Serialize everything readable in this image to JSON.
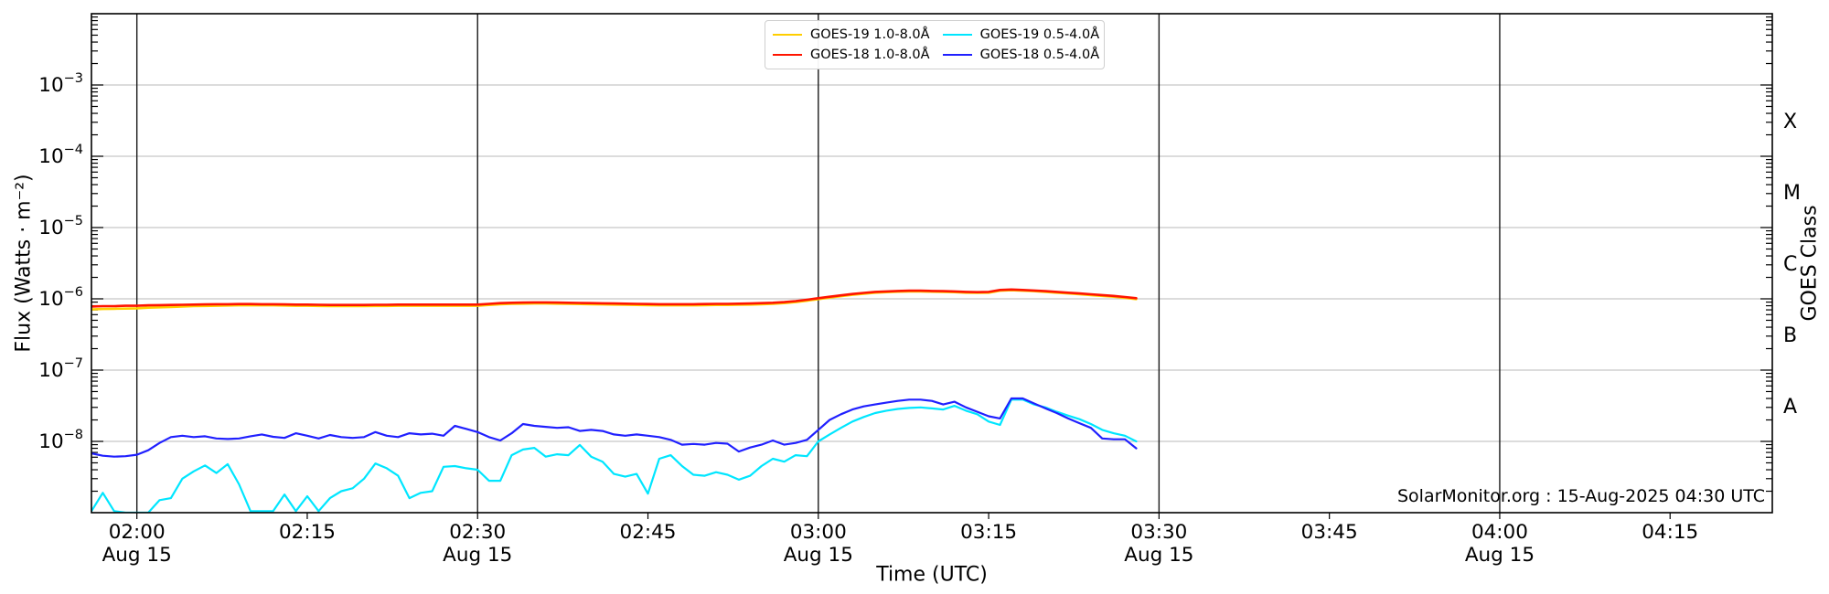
{
  "figure": {
    "xlabel": "Time (UTC)",
    "ylabel_left": "Flux (Watts · m⁻²)",
    "ylabel_right": "GOES Class",
    "annotation": "SolarMonitor.org : 15-Aug-2025 04:30 UTC"
  },
  "legend": {
    "entries": [
      {
        "id": "goes19-long",
        "label": "GOES-19 1.0-8.0Å",
        "color": "#FFCE00"
      },
      {
        "id": "goes18-long",
        "label": "GOES-18 1.0-8.0Å",
        "color": "#FF1400"
      },
      {
        "id": "goes19-short",
        "label": "GOES-19 0.5-4.0Å",
        "color": "#00E6FF"
      },
      {
        "id": "goes18-short",
        "label": "GOES-18 0.5-4.0Å",
        "color": "#2020FF"
      }
    ]
  },
  "chart_data": {
    "type": "line",
    "title": "",
    "xlabel": "Time (UTC)",
    "ylabel": "Flux (Watts · m⁻²)",
    "ylabel_right": "GOES Class",
    "annotation": "SolarMonitor.org : 15-Aug-2025 04:30 UTC",
    "x_axis": {
      "date": "Aug 15",
      "range_minutes_from_0200": [
        -4,
        144
      ],
      "ticks": [
        {
          "minute": 0,
          "time": "02:00",
          "date": "Aug 15"
        },
        {
          "minute": 15,
          "time": "02:15"
        },
        {
          "minute": 30,
          "time": "02:30",
          "date": "Aug 15"
        },
        {
          "minute": 45,
          "time": "02:45"
        },
        {
          "minute": 60,
          "time": "03:00",
          "date": "Aug 15"
        },
        {
          "minute": 75,
          "time": "03:15"
        },
        {
          "minute": 90,
          "time": "03:30",
          "date": "Aug 15"
        },
        {
          "minute": 105,
          "time": "03:45"
        },
        {
          "minute": 120,
          "time": "04:00",
          "date": "Aug 15"
        },
        {
          "minute": 135,
          "time": "04:15"
        }
      ]
    },
    "y_axis": {
      "scale": "log10",
      "range_watts_m2": [
        1e-09,
        0.01
      ],
      "tick_label_exponents": [
        -3,
        -4,
        -5,
        -6,
        -7,
        -8
      ]
    },
    "goes_classes": [
      {
        "label": "X",
        "midpoint_exponent": -3.5
      },
      {
        "label": "M",
        "midpoint_exponent": -4.5
      },
      {
        "label": "C",
        "midpoint_exponent": -5.5
      },
      {
        "label": "B",
        "midpoint_exponent": -6.5
      },
      {
        "label": "A",
        "midpoint_exponent": -7.5
      }
    ],
    "grid": {
      "horizontal_decade_exponents": [
        -3,
        -4,
        -5,
        -6,
        -7,
        -8
      ],
      "vertical_line_minutes": [
        0,
        30,
        60,
        90,
        120
      ],
      "gridline_color": "#c8c8c8",
      "vertical_line_color": "#1a1a1a"
    },
    "series": [
      {
        "id": "goes19-long",
        "name": "GOES-19 1.0-8.0Å",
        "color": "#FFCE00",
        "width": 2.6,
        "start_minute": -4,
        "step_minutes": 1,
        "unit_scale": 1e-07,
        "values": [
          7.1,
          7.2,
          7.25,
          7.3,
          7.35,
          7.5,
          7.6,
          7.7,
          7.8,
          7.9,
          7.95,
          8.0,
          8.05,
          8.1,
          8.1,
          8.1,
          8.1,
          8.05,
          8.0,
          8.0,
          7.95,
          7.9,
          7.9,
          7.9,
          7.9,
          7.95,
          7.95,
          8.0,
          8.0,
          8.0,
          8.0,
          8.0,
          8.0,
          8.0,
          8.0,
          8.2,
          8.4,
          8.5,
          8.55,
          8.6,
          8.6,
          8.55,
          8.5,
          8.45,
          8.4,
          8.35,
          8.3,
          8.25,
          8.2,
          8.15,
          8.1,
          8.1,
          8.1,
          8.1,
          8.15,
          8.2,
          8.2,
          8.25,
          8.3,
          8.4,
          8.5,
          8.7,
          9.0,
          9.4,
          9.9,
          10.4,
          10.9,
          11.4,
          11.8,
          12.2,
          12.4,
          12.6,
          12.7,
          12.7,
          12.6,
          12.5,
          12.4,
          12.2,
          12.1,
          12.2,
          13.0,
          13.2,
          13.0,
          12.8,
          12.5,
          12.2,
          11.9,
          11.6,
          11.3,
          11.0,
          10.7,
          10.3,
          9.9
        ]
      },
      {
        "id": "goes18-long",
        "name": "GOES-18 1.0-8.0Å",
        "color": "#FF1400",
        "width": 2.6,
        "start_minute": -4,
        "step_minutes": 1,
        "unit_scale": 1e-07,
        "values": [
          7.8,
          7.9,
          7.9,
          8.0,
          8.0,
          8.1,
          8.15,
          8.2,
          8.25,
          8.3,
          8.35,
          8.4,
          8.4,
          8.45,
          8.45,
          8.4,
          8.4,
          8.35,
          8.3,
          8.3,
          8.25,
          8.2,
          8.2,
          8.2,
          8.2,
          8.25,
          8.25,
          8.3,
          8.3,
          8.3,
          8.3,
          8.3,
          8.3,
          8.3,
          8.3,
          8.5,
          8.7,
          8.8,
          8.85,
          8.9,
          8.9,
          8.85,
          8.8,
          8.75,
          8.7,
          8.65,
          8.6,
          8.55,
          8.5,
          8.45,
          8.4,
          8.4,
          8.4,
          8.4,
          8.45,
          8.5,
          8.5,
          8.55,
          8.6,
          8.7,
          8.8,
          9.0,
          9.3,
          9.7,
          10.2,
          10.7,
          11.2,
          11.7,
          12.1,
          12.5,
          12.7,
          12.9,
          13.0,
          13.0,
          12.9,
          12.8,
          12.7,
          12.5,
          12.4,
          12.5,
          13.3,
          13.5,
          13.3,
          13.1,
          12.8,
          12.5,
          12.2,
          11.9,
          11.6,
          11.3,
          11.0,
          10.6,
          10.2
        ]
      },
      {
        "id": "goes19-short",
        "name": "GOES-19 0.5-4.0Å",
        "color": "#00E6FF",
        "width": 2.2,
        "start_minute": -4,
        "step_minutes": 1,
        "unit_scale": 1e-09,
        "values": [
          1.05,
          1.9,
          1.05,
          1.0,
          1.0,
          1.0,
          1.5,
          1.6,
          3.0,
          3.8,
          4.6,
          3.6,
          4.8,
          2.5,
          1.05,
          1.05,
          1.05,
          1.8,
          1.05,
          1.7,
          1.05,
          1.6,
          2.0,
          2.2,
          3.0,
          4.9,
          4.2,
          3.3,
          1.6,
          1.9,
          2.0,
          4.4,
          4.5,
          4.2,
          4.0,
          2.8,
          2.8,
          6.4,
          7.7,
          8.1,
          6.1,
          6.6,
          6.4,
          8.9,
          6.1,
          5.2,
          3.5,
          3.2,
          3.5,
          1.85,
          5.7,
          6.4,
          4.5,
          3.4,
          3.3,
          3.7,
          3.4,
          2.9,
          3.3,
          4.5,
          5.7,
          5.2,
          6.4,
          6.2,
          10,
          12.5,
          15.5,
          19,
          22,
          25,
          27,
          28.5,
          29.5,
          30,
          29,
          28,
          31.5,
          27,
          24,
          19,
          17,
          38.5,
          38.5,
          33,
          30,
          26,
          23,
          20.5,
          17.5,
          14.5,
          13,
          12,
          10
        ]
      },
      {
        "id": "goes18-short",
        "name": "GOES-18 0.5-4.0Å",
        "color": "#2020FF",
        "width": 2.2,
        "start_minute": -4,
        "step_minutes": 1,
        "unit_scale": 1e-09,
        "values": [
          6.8,
          6.3,
          6.1,
          6.2,
          6.5,
          7.5,
          9.5,
          11.5,
          12.0,
          11.5,
          11.8,
          11.0,
          10.8,
          11.0,
          11.8,
          12.5,
          11.6,
          11.2,
          13.0,
          12.0,
          11.0,
          12.3,
          11.5,
          11.2,
          11.5,
          13.5,
          12.0,
          11.5,
          13.0,
          12.5,
          12.8,
          12.0,
          16.5,
          15.0,
          13.5,
          11.5,
          10.3,
          13.0,
          17.5,
          16.5,
          16.0,
          15.5,
          15.8,
          14.0,
          14.5,
          14.0,
          12.5,
          12.0,
          12.5,
          12.0,
          11.5,
          10.5,
          9.0,
          9.2,
          9.0,
          9.5,
          9.3,
          7.2,
          8.2,
          9.0,
          10.3,
          9.0,
          9.5,
          10.5,
          14.5,
          20,
          24,
          28,
          31,
          33,
          35,
          37,
          38.5,
          38.5,
          37,
          33,
          36,
          30,
          26,
          22.5,
          21,
          40,
          40,
          34,
          29,
          25,
          21,
          18,
          15.5,
          11,
          10.7,
          10.7,
          8.0
        ]
      }
    ]
  }
}
